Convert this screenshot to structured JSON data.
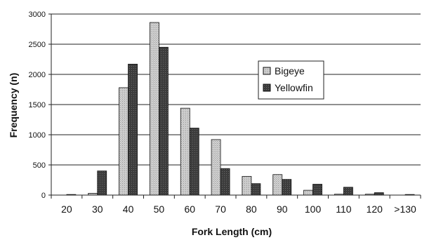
{
  "chart_data": {
    "type": "bar",
    "title": "",
    "xlabel": "Fork Length (cm)",
    "ylabel": "Frequency (n)",
    "categories": [
      "20",
      "30",
      "40",
      "50",
      "60",
      "70",
      "80",
      "90",
      "100",
      "110",
      "120",
      ">130"
    ],
    "series": [
      {
        "name": "Bigeye",
        "color": "#c8c8c8",
        "values": [
          0,
          30,
          1780,
          2860,
          1440,
          920,
          310,
          340,
          80,
          15,
          15,
          0
        ]
      },
      {
        "name": "Yellowfin",
        "color": "#3a3a3a",
        "values": [
          10,
          400,
          2170,
          2450,
          1110,
          440,
          190,
          260,
          180,
          130,
          40,
          10
        ]
      }
    ],
    "ylim": [
      0,
      3000
    ],
    "yticks": [
      0,
      500,
      1000,
      1500,
      2000,
      2500,
      3000
    ],
    "grid": true,
    "legend_position": "upper-right"
  }
}
